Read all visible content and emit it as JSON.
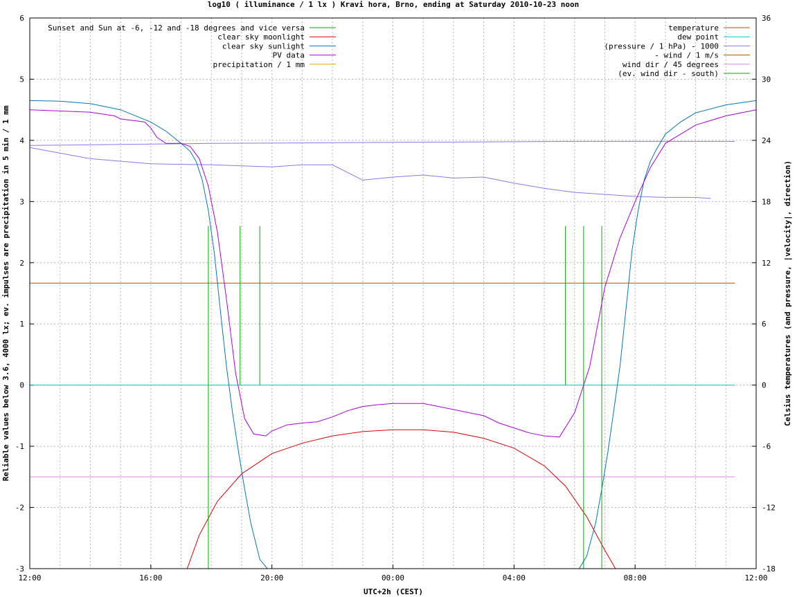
{
  "chart_data": {
    "type": "line",
    "title": "log10 ( illuminance / 1 lx ) Kravi hora, Brno, ending at Saturday 2010-10-23 noon",
    "xlabel": "UTC+2h (CEST)",
    "ylabel_left": "Reliable values below 3.6, 4000 lx; ev. impulses are precipitation in 5 min / 1 mm",
    "ylabel_right": "Celsius temperatures (and pressure, |velocity|, direction)",
    "x_ticks": [
      "12:00",
      "16:00",
      "20:00",
      "00:00",
      "04:00",
      "08:00",
      "12:00"
    ],
    "x_range_hours": [
      0,
      24
    ],
    "y_left_ticks": [
      "-3",
      "-2",
      "-1",
      "0",
      "1",
      "2",
      "3",
      "4",
      "5",
      "6"
    ],
    "y_left_range": [
      -3,
      6
    ],
    "y_right_ticks": [
      "-18",
      "-12",
      "-6",
      "0",
      "6",
      "12",
      "18",
      "24",
      "30",
      "36"
    ],
    "y_right_range": [
      -18,
      36
    ],
    "grid": true,
    "legend_left": [
      {
        "label": "Sunset and Sun at -6, -12 and -18 degrees and vice versa",
        "color": "#00aa00"
      },
      {
        "label": "clear sky moonlight",
        "color": "#dd0000"
      },
      {
        "label": "clear sky sunlight",
        "color": "#0077bb"
      },
      {
        "label": "PV data",
        "color": "#aa00dd"
      },
      {
        "label": "precipitation / 1 mm",
        "color": "#ddaa00"
      }
    ],
    "legend_right": [
      {
        "label": "temperature",
        "color": "#aa5500"
      },
      {
        "label": "dew point",
        "color": "#00cccc"
      },
      {
        "label": "(pressure / 1 hPa) - 1000",
        "color": "#8877ee"
      },
      {
        "label": "- wind / 1 m/s",
        "color": "#aa5500"
      },
      {
        "label": "wind dir / 45 degrees",
        "color": "#dd88ee"
      },
      {
        "label": "(ev. wind dir - south)",
        "color": "#00aa00"
      }
    ],
    "sun_event_lines_hours": [
      5.9,
      6.95,
      7.6,
      17.7,
      18.3,
      18.9
    ],
    "clear_sky_sunlight": {
      "x_hours": [
        0,
        1,
        2,
        3,
        4,
        4.5,
        5,
        5.3,
        5.5,
        5.7,
        5.9,
        6.1,
        6.3,
        6.5,
        6.7,
        6.9,
        7.1,
        7.3,
        7.6,
        7.85,
        18.15,
        18.4,
        18.7,
        18.9,
        19.1,
        19.3,
        19.5,
        19.7,
        19.9,
        20.1,
        20.3,
        20.5,
        20.7,
        21,
        21.5,
        22,
        23,
        24
      ],
      "values": [
        4.65,
        4.64,
        4.6,
        4.5,
        4.3,
        4.15,
        3.95,
        3.82,
        3.65,
        3.35,
        2.85,
        2.15,
        1.2,
        0.3,
        -0.45,
        -1.1,
        -1.7,
        -2.25,
        -2.85,
        -3.0,
        -3.0,
        -2.8,
        -2.25,
        -1.7,
        -1.1,
        -0.4,
        0.3,
        1.25,
        2.2,
        2.85,
        3.35,
        3.65,
        3.85,
        4.1,
        4.3,
        4.45,
        4.58,
        4.65
      ]
    },
    "clear_sky_moonlight": {
      "x_hours": [
        5.2,
        5.6,
        6.2,
        7,
        8,
        9,
        10,
        11,
        12,
        13,
        14,
        15,
        16,
        17,
        17.7,
        18.4,
        19,
        19.35
      ],
      "values": [
        -3.0,
        -2.45,
        -1.9,
        -1.45,
        -1.12,
        -0.95,
        -0.83,
        -0.76,
        -0.73,
        -0.73,
        -0.77,
        -0.87,
        -1.03,
        -1.32,
        -1.65,
        -2.15,
        -2.7,
        -3.0
      ]
    },
    "pv_data": {
      "x_hours": [
        0,
        1,
        2,
        2.8,
        3,
        3.8,
        4,
        4.2,
        4.5,
        5,
        5.3,
        5.6,
        5.9,
        6.2,
        6.5,
        6.8,
        7.1,
        7.4,
        7.8,
        8,
        8.5,
        9,
        9.5,
        10,
        10.5,
        11,
        11.5,
        12,
        12.5,
        13,
        13.5,
        14,
        14.5,
        15,
        15.5,
        16,
        16.5,
        17,
        17.5,
        18,
        18.5,
        19,
        19.5,
        20,
        20.5,
        21,
        22,
        23,
        24
      ],
      "values": [
        4.5,
        4.48,
        4.46,
        4.4,
        4.35,
        4.3,
        4.2,
        4.05,
        3.95,
        3.95,
        3.9,
        3.7,
        3.25,
        2.5,
        1.4,
        0.2,
        -0.55,
        -0.8,
        -0.83,
        -0.75,
        -0.65,
        -0.62,
        -0.6,
        -0.52,
        -0.42,
        -0.35,
        -0.32,
        -0.3,
        -0.3,
        -0.3,
        -0.35,
        -0.4,
        -0.45,
        -0.5,
        -0.62,
        -0.7,
        -0.78,
        -0.83,
        -0.85,
        -0.45,
        0.3,
        1.6,
        2.4,
        3.0,
        3.55,
        3.95,
        4.25,
        4.4,
        4.5
      ]
    },
    "temperature_c": {
      "x_hours": [
        0,
        23.3
      ],
      "values": [
        10.0,
        10.0
      ]
    },
    "dew_point_c": {
      "x_hours": [
        0,
        23.3
      ],
      "values": [
        0.0,
        0.0
      ]
    },
    "pressure_minus_1000": {
      "x_hours": [
        0,
        2,
        4,
        6,
        8,
        9,
        10,
        11,
        12,
        13,
        14,
        15,
        16,
        17,
        18,
        19,
        20,
        21,
        22,
        22.5
      ],
      "values": [
        23.3,
        22.2,
        21.7,
        21.6,
        21.4,
        21.6,
        21.6,
        20.1,
        20.4,
        20.6,
        20.3,
        20.4,
        19.8,
        19.3,
        18.9,
        18.7,
        18.5,
        18.4,
        18.4,
        18.3
      ]
    },
    "pressure_upper_trace": {
      "x_hours": [
        0,
        3,
        6,
        9,
        12,
        15,
        18,
        21,
        23.3
      ],
      "values": [
        23.5,
        23.6,
        23.7,
        23.75,
        23.8,
        23.85,
        23.9,
        23.9,
        23.9
      ]
    },
    "wind_dir_45deg": {
      "x_hours": [
        0,
        23.3
      ],
      "values": [
        -1.5,
        -1.5
      ]
    }
  }
}
